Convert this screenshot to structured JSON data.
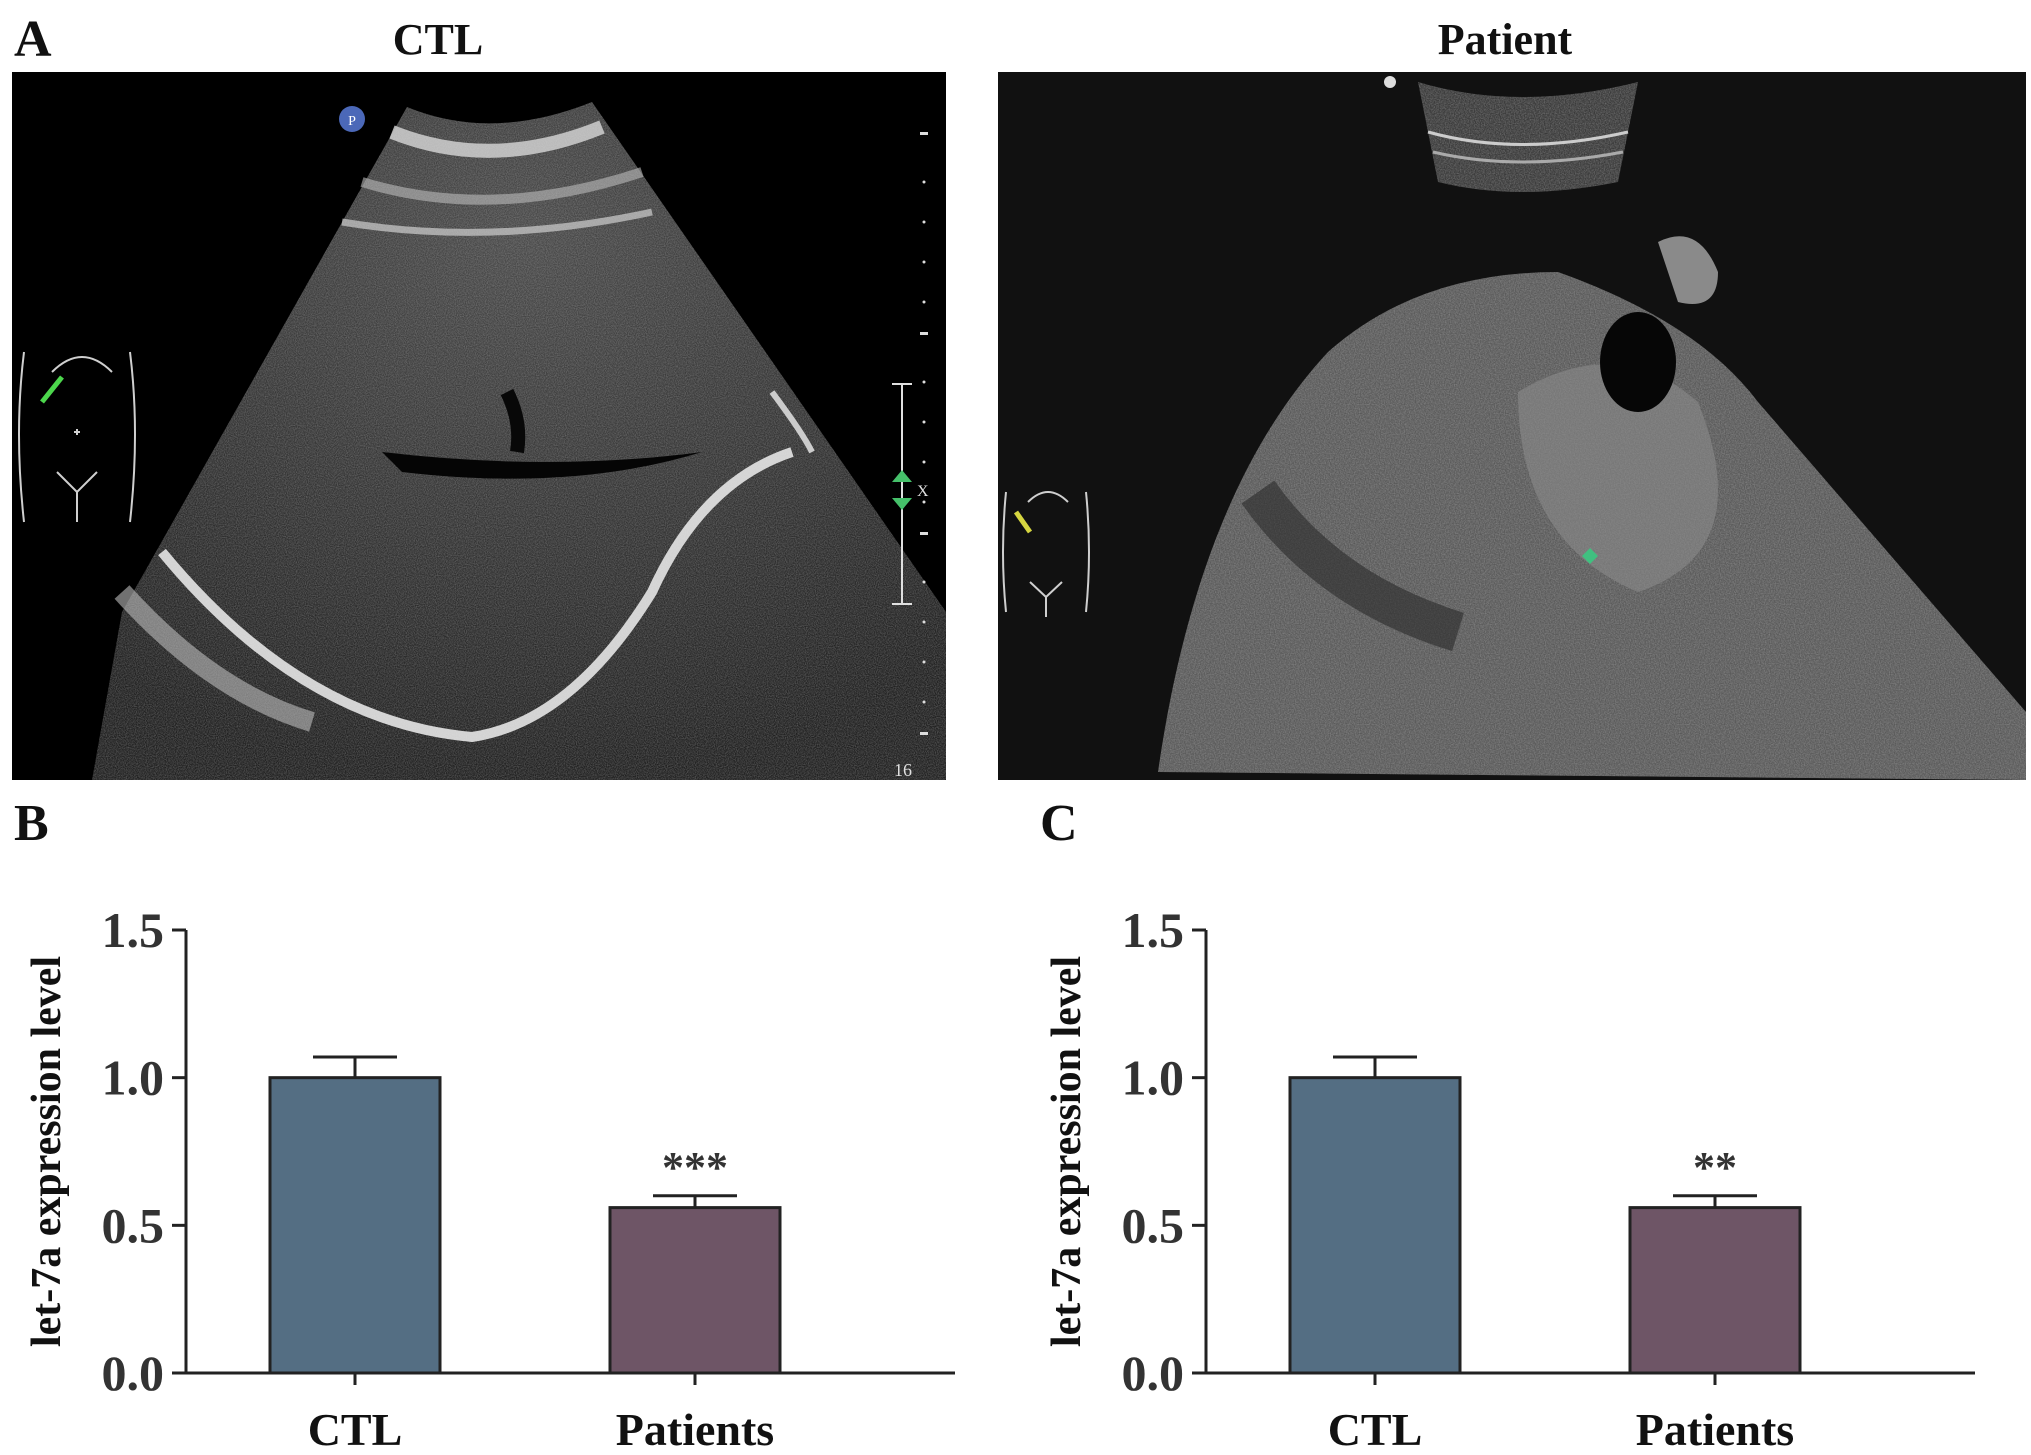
{
  "panels": {
    "a": {
      "letter": "A",
      "ctl_title": "CTL",
      "patient_title": "Patient",
      "ctl_depth_label": "16",
      "ctl_marker_label": "X",
      "ctl_probe_label": "P"
    },
    "b": {
      "letter": "B"
    },
    "c": {
      "letter": "C"
    }
  },
  "colors": {
    "ctl_bar": "#546e83",
    "patients_bar": "#6e5566"
  },
  "chart_data": [
    {
      "type": "bar",
      "panel": "B",
      "categories": [
        "CTL",
        "Patients"
      ],
      "values": [
        1.0,
        0.56
      ],
      "errors": [
        0.07,
        0.04
      ],
      "significance": [
        "",
        "***"
      ],
      "ylabel": "let-7a expression level",
      "xlabel": "",
      "ylim": [
        0,
        1.5
      ],
      "yticks": [
        "0.0",
        "0.5",
        "1.0",
        "1.5"
      ],
      "grid": false
    },
    {
      "type": "bar",
      "panel": "C",
      "categories": [
        "CTL",
        "Patients"
      ],
      "values": [
        1.0,
        0.56
      ],
      "errors": [
        0.07,
        0.04
      ],
      "significance": [
        "",
        "**"
      ],
      "ylabel": "let-7a expression level",
      "xlabel": "",
      "ylim": [
        0,
        1.5
      ],
      "yticks": [
        "0.0",
        "0.5",
        "1.0",
        "1.5"
      ],
      "grid": false
    }
  ]
}
